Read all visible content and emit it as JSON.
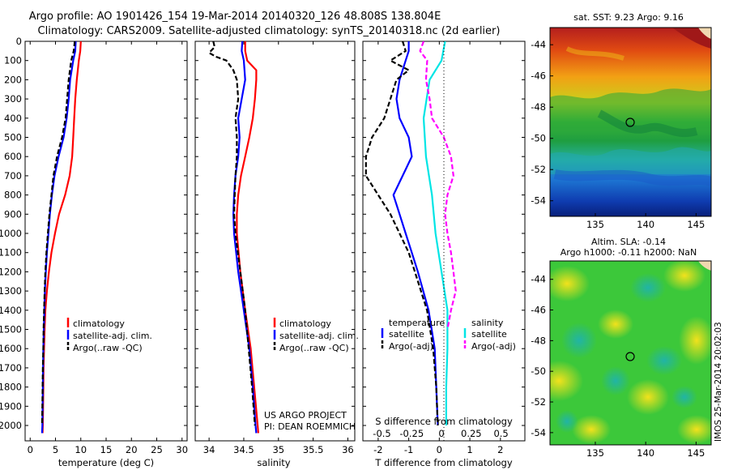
{
  "header": {
    "title_line1": "Argo profile: AO 1901426_154 19-Mar-2014 20140320_126 48.808S 138.804E",
    "title_line2": "Climatology: CARS2009. Satellite-adjusted climatology: synTS_20140318.nc (2d earlier)"
  },
  "colors": {
    "climatology": "#ff0000",
    "satellite": "#0000ff",
    "argo": "#000000",
    "salinity_satellite": "#00e5e5",
    "salinity_argo": "#ff00ff"
  },
  "legends": {
    "temperature_panel": [
      "climatology",
      "satellite-adj. clim.",
      "Argo(..raw -QC)"
    ],
    "salinity_panel": [
      "climatology",
      "satellite-adj. clim.",
      "Argo(..raw -QC)"
    ],
    "diff_panel": {
      "temp_header": "temperature",
      "sal_header": "salinity",
      "temp_items": [
        "satellite",
        "Argo(-adj)"
      ],
      "sal_items": [
        "satellite",
        "Argo(-adj)"
      ]
    }
  },
  "credits": {
    "line1": "US ARGO PROJECT",
    "line2": "PI: DEAN ROEMMICH"
  },
  "maps": {
    "sst_title": "sat. SST: 9.23 Argo: 9.16",
    "sla_title1": "Altim. SLA: -0.14",
    "sla_title2": "Argo h1000: -0.11 h2000: NaN",
    "lat_ticks": [
      "-44",
      "-46",
      "-48",
      "-50",
      "-52",
      "-54"
    ],
    "lon_ticks": [
      "135",
      "140",
      "145"
    ],
    "stamp": "IMOS 25-Mar-2014 20:02:03"
  },
  "chart_data": [
    {
      "type": "line",
      "name": "temperature",
      "xlabel": "temperature (deg C)",
      "ylabel": "",
      "xlim": [
        -1,
        31
      ],
      "ylim": [
        2080,
        0
      ],
      "x_ticks": [
        "0",
        "5",
        "10",
        "15",
        "20",
        "25",
        "30"
      ],
      "y_ticks": [
        "0",
        "100",
        "200",
        "300",
        "400",
        "500",
        "600",
        "700",
        "800",
        "900",
        "1000",
        "1100",
        "1200",
        "1300",
        "1400",
        "1500",
        "1600",
        "1700",
        "1800",
        "1900",
        "2000"
      ],
      "legend_position": "bottom-right",
      "series": [
        {
          "key": "climatology",
          "depth": [
            0,
            50,
            100,
            200,
            300,
            400,
            500,
            600,
            700,
            800,
            900,
            1000,
            1100,
            1200,
            1300,
            1400,
            1500,
            1600,
            1700,
            1800,
            1900,
            2000,
            2040
          ],
          "values": [
            10.0,
            9.9,
            9.6,
            9.2,
            8.9,
            8.7,
            8.5,
            8.3,
            7.8,
            6.9,
            5.7,
            4.9,
            4.2,
            3.7,
            3.3,
            3.0,
            2.85,
            2.75,
            2.65,
            2.6,
            2.55,
            2.5,
            2.45
          ]
        },
        {
          "key": "satellite",
          "depth": [
            0,
            50,
            100,
            200,
            300,
            400,
            500,
            600,
            700,
            800,
            900,
            1000,
            1100,
            1200,
            1300,
            1400,
            1500,
            1600,
            1700,
            1800,
            1900,
            2000,
            2040
          ],
          "values": [
            9.0,
            8.9,
            8.5,
            7.9,
            7.6,
            7.2,
            6.6,
            5.6,
            4.8,
            4.3,
            3.9,
            3.6,
            3.3,
            3.1,
            2.9,
            2.8,
            2.7,
            2.6,
            2.55,
            2.5,
            2.45,
            2.4,
            2.35
          ]
        },
        {
          "key": "argo",
          "depth": [
            0,
            50,
            100,
            200,
            300,
            400,
            500,
            600,
            700,
            800,
            900,
            1000,
            1100,
            1200,
            1300,
            1400,
            1500,
            1600,
            1700,
            1800,
            1900,
            2000
          ],
          "values": [
            8.8,
            8.6,
            8.1,
            7.6,
            7.3,
            7.0,
            6.3,
            5.3,
            4.6,
            4.2,
            3.8,
            3.5,
            3.2,
            3.0,
            2.85,
            2.75,
            2.65,
            2.6,
            2.5,
            2.45,
            2.4,
            2.35
          ]
        }
      ]
    },
    {
      "type": "line",
      "name": "salinity",
      "xlabel": "salinity",
      "ylabel": "",
      "xlim": [
        33.8,
        36.1
      ],
      "ylim": [
        2080,
        0
      ],
      "x_ticks": [
        "34",
        "34.5",
        "35",
        "35.5",
        "36"
      ],
      "legend_position": "bottom-right",
      "series": [
        {
          "key": "climatology",
          "depth": [
            0,
            50,
            100,
            150,
            200,
            300,
            400,
            500,
            600,
            700,
            800,
            900,
            1000,
            1200,
            1400,
            1600,
            1800,
            2000,
            2040
          ],
          "values": [
            34.52,
            34.52,
            34.55,
            34.68,
            34.68,
            34.66,
            34.63,
            34.58,
            34.52,
            34.46,
            34.42,
            34.4,
            34.4,
            34.45,
            34.52,
            34.6,
            34.65,
            34.7,
            34.71
          ]
        },
        {
          "key": "satellite",
          "depth": [
            0,
            50,
            100,
            200,
            300,
            400,
            500,
            600,
            700,
            800,
            900,
            1000,
            1200,
            1400,
            1600,
            1800,
            2000,
            2040
          ],
          "values": [
            34.48,
            34.47,
            34.5,
            34.52,
            34.47,
            34.42,
            34.44,
            34.42,
            34.38,
            34.36,
            34.35,
            34.36,
            34.42,
            34.5,
            34.58,
            34.63,
            34.67,
            34.68
          ]
        },
        {
          "key": "argo",
          "depth": [
            0,
            30,
            60,
            80,
            100,
            150,
            200,
            300,
            400,
            500,
            600,
            700,
            800,
            900,
            1000,
            1200,
            1400,
            1600,
            1800,
            2000
          ],
          "values": [
            34.06,
            34.08,
            34.0,
            34.1,
            34.25,
            34.35,
            34.4,
            34.42,
            34.38,
            34.4,
            34.4,
            34.38,
            34.37,
            34.36,
            34.38,
            34.45,
            34.52,
            34.57,
            34.62,
            34.66
          ]
        }
      ]
    },
    {
      "type": "line",
      "name": "difference",
      "xlabel": "T difference from climatology",
      "xlabel_top": "S difference from climatology",
      "ylabel": "",
      "xlim": [
        -2.5,
        2.8
      ],
      "ylim": [
        2080,
        0
      ],
      "x_ticks": [
        "-2",
        "-1",
        "0",
        "1",
        "2"
      ],
      "x2_ticks": [
        "-0.5",
        "-0.25",
        "0",
        "0.25",
        "0.5"
      ],
      "x2lim": [
        -0.66,
        0.7
      ],
      "legend_position": "bottom",
      "series": [
        {
          "key": "t_satellite",
          "axis": "T",
          "depth": [
            0,
            50,
            100,
            200,
            300,
            400,
            500,
            600,
            700,
            800,
            900,
            1000,
            1100,
            1200,
            1400,
            1600,
            1800,
            2000
          ],
          "values": [
            -1.0,
            -1.0,
            -1.1,
            -1.3,
            -1.4,
            -1.3,
            -1.0,
            -0.9,
            -1.2,
            -1.5,
            -1.3,
            -1.1,
            -0.9,
            -0.7,
            -0.35,
            -0.15,
            -0.1,
            -0.05
          ]
        },
        {
          "key": "t_argo",
          "axis": "T",
          "depth": [
            0,
            50,
            100,
            150,
            200,
            300,
            400,
            500,
            600,
            700,
            800,
            900,
            1000,
            1100,
            1200,
            1400,
            1600,
            1800,
            2000
          ],
          "values": [
            -1.2,
            -1.1,
            -1.6,
            -1.0,
            -1.4,
            -1.6,
            -1.8,
            -2.2,
            -2.4,
            -2.4,
            -2.0,
            -1.6,
            -1.3,
            -1.0,
            -0.8,
            -0.4,
            -0.2,
            -0.1,
            -0.05
          ]
        },
        {
          "key": "s_satellite",
          "axis": "S",
          "depth": [
            0,
            100,
            200,
            400,
            600,
            800,
            1000,
            1200,
            1400,
            1600,
            1800,
            2000
          ],
          "values": [
            0.03,
            0.0,
            -0.1,
            -0.15,
            -0.13,
            -0.08,
            -0.05,
            0.0,
            0.05,
            0.05,
            0.04,
            0.04
          ]
        },
        {
          "key": "s_argo",
          "axis": "S",
          "depth": [
            0,
            50,
            100,
            200,
            300,
            400,
            500,
            600,
            700,
            800,
            900,
            1000,
            1100,
            1200,
            1300,
            1400,
            1500
          ],
          "values": [
            -0.15,
            -0.18,
            -0.12,
            -0.13,
            -0.1,
            -0.08,
            0.02,
            0.08,
            0.1,
            0.05,
            0.03,
            0.05,
            0.08,
            0.1,
            0.12,
            0.08,
            0.05
          ]
        }
      ]
    }
  ]
}
